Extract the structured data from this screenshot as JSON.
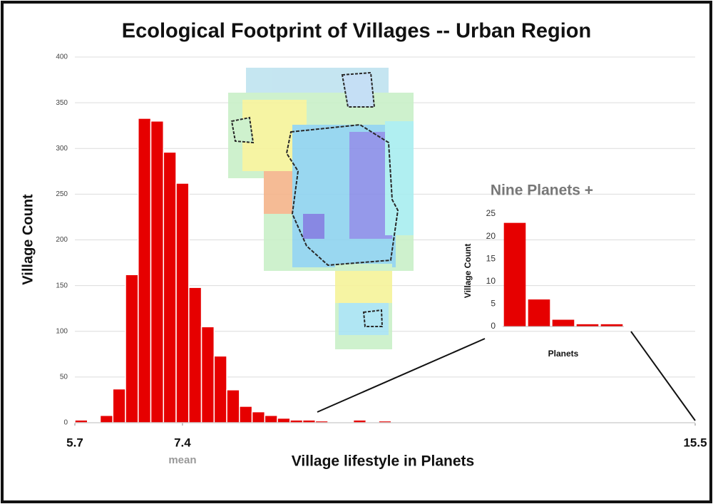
{
  "chart_data": [
    {
      "type": "histogram",
      "title": "Ecological Footprint of Villages -- Urban Region",
      "xlabel": "Village lifestyle in Planets",
      "ylabel": "Village Count",
      "bins": [
        5.7,
        5.9,
        6.1,
        6.3,
        6.5,
        6.7,
        6.9,
        7.1,
        7.3,
        7.5,
        7.7,
        7.9,
        8.1,
        8.3,
        8.5,
        8.7,
        8.9,
        9.1,
        9.3,
        9.5,
        9.7,
        9.9,
        10.1,
        10.3,
        10.5,
        10.7,
        10.9,
        11.1,
        11.3,
        11.5,
        11.7,
        11.9,
        12.1,
        12.3,
        12.5,
        12.7,
        12.9,
        13.1,
        13.3,
        13.5,
        13.7,
        13.9,
        14.1,
        14.3,
        14.5,
        14.7,
        14.9,
        15.1,
        15.3,
        15.5
      ],
      "values": [
        3,
        0,
        8,
        37,
        162,
        333,
        330,
        296,
        262,
        148,
        105,
        73,
        36,
        18,
        12,
        8,
        5,
        3,
        3,
        2,
        1,
        1,
        3,
        1,
        2,
        1,
        0,
        0,
        1,
        0,
        0,
        0,
        0,
        0,
        0,
        1,
        0,
        0,
        0,
        0,
        0,
        0,
        0,
        0,
        1,
        0,
        0,
        0,
        1
      ],
      "color": "#e60000",
      "xlim": [
        5.7,
        15.5
      ],
      "xticks": [
        5.7,
        7.4,
        15.5
      ],
      "ylim": [
        0,
        400
      ],
      "yticks": [
        0,
        50,
        100,
        150,
        200,
        250,
        300,
        350,
        400
      ],
      "annotations": [
        {
          "text": "mean",
          "x": 7.4
        }
      ],
      "grid": true
    },
    {
      "type": "bar",
      "title": "Nine Planets +",
      "xlabel": "Planets",
      "ylabel": "Village Count",
      "categories": [
        null,
        null,
        null,
        null,
        null
      ],
      "values": [
        23,
        6,
        1.5,
        0.5,
        0.5
      ],
      "color": "#e60000",
      "ylim": [
        0,
        25
      ],
      "yticks": [
        0,
        5,
        10,
        15,
        20,
        25
      ],
      "grid": false
    }
  ]
}
